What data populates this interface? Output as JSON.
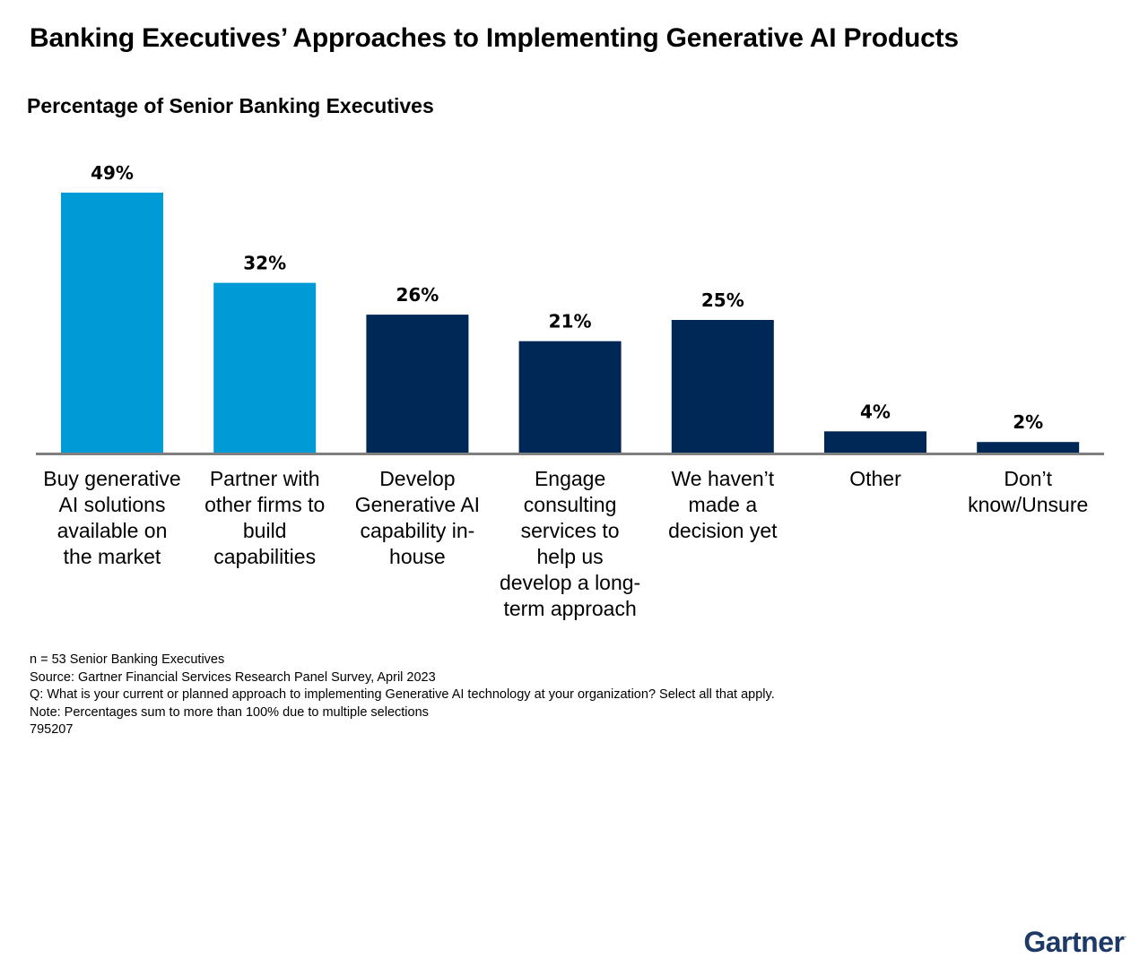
{
  "title": "Banking Executives’ Approaches to Implementing Generative AI Products",
  "subtitle": "Percentage of Senior Banking Executives",
  "chart_data": {
    "type": "bar",
    "title": "Banking Executives’ Approaches to Implementing Generative AI Products",
    "ylabel": "Percentage of Senior Banking Executives",
    "xlabel": "",
    "ylim": [
      0,
      50
    ],
    "grid": false,
    "categories": [
      "Buy generative AI solutions available on the market",
      "Partner with other firms to build capabilities",
      "Develop Generative AI capability in-house",
      "Engage consulting services to help us develop a long-term approach",
      "We haven’t made a decision yet",
      "Other",
      "Don’t know/Unsure"
    ],
    "values": [
      49,
      32,
      26,
      21,
      25,
      4,
      2
    ],
    "value_labels": [
      "49%",
      "32%",
      "26%",
      "21%",
      "25%",
      "4%",
      "2%"
    ],
    "category_lines": [
      [
        "Buy generative",
        "AI solutions",
        "available on",
        "the market"
      ],
      [
        "Partner with",
        "other firms to",
        "build",
        "capabilities"
      ],
      [
        "Develop",
        "Generative AI",
        "capability in-",
        "house"
      ],
      [
        "Engage",
        "consulting",
        "services to",
        "help us",
        "develop a long-",
        "term approach"
      ],
      [
        "We haven’t",
        "made a",
        "decision yet"
      ],
      [
        "Other"
      ],
      [
        "Don’t",
        "know/Unsure"
      ]
    ],
    "bar_colors": [
      "#009ad6",
      "#009ad6",
      "#002856",
      "#002856",
      "#002856",
      "#002856",
      "#002856"
    ],
    "axis_color": "#7f7f7f"
  },
  "footnotes": {
    "sample": "n = 53 Senior Banking Executives",
    "source": "Source: Gartner Financial Services Research Panel Survey, April 2023",
    "question": "Q: What is your current or planned approach to implementing Generative AI technology at your organization? Select all that apply.",
    "note": "Note: Percentages sum to more than 100% due to multiple selections",
    "id": "795207"
  },
  "logo": {
    "text": "Gartner",
    "mark": "."
  }
}
